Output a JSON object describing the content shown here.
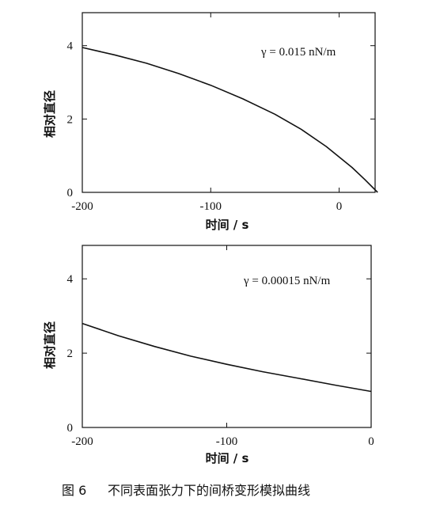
{
  "caption": {
    "figure_no": "图 6",
    "text": "不同表面张力下的间桥变形模拟曲线"
  },
  "chart_data": [
    {
      "type": "line",
      "xlabel": "时间 / s",
      "ylabel": "相对直径",
      "xlim": [
        -200,
        28
      ],
      "ylim": [
        0,
        4.9
      ],
      "xticks": [
        -200,
        -100,
        0
      ],
      "yticks": [
        0,
        2,
        4
      ],
      "annotation": "γ = 0.015 nN/m",
      "series": [
        {
          "x": [
            -200,
            -175,
            -150,
            -125,
            -100,
            -75,
            -50,
            -30,
            -10,
            10,
            20,
            30
          ],
          "y": [
            3.95,
            3.75,
            3.52,
            3.24,
            2.92,
            2.55,
            2.13,
            1.73,
            1.25,
            0.68,
            0.35,
            0.0
          ]
        }
      ]
    },
    {
      "type": "line",
      "xlabel": "时间 / s",
      "ylabel": "相对直径",
      "xlim": [
        -200,
        0
      ],
      "ylim": [
        0,
        4.9
      ],
      "xticks": [
        -200,
        -100,
        0
      ],
      "yticks": [
        0,
        2,
        4
      ],
      "annotation": "γ = 0.00015 nN/m",
      "series": [
        {
          "x": [
            -200,
            -175,
            -150,
            -125,
            -100,
            -75,
            -50,
            -25,
            0
          ],
          "y": [
            2.8,
            2.47,
            2.18,
            1.92,
            1.7,
            1.5,
            1.32,
            1.14,
            0.97
          ]
        }
      ]
    }
  ]
}
